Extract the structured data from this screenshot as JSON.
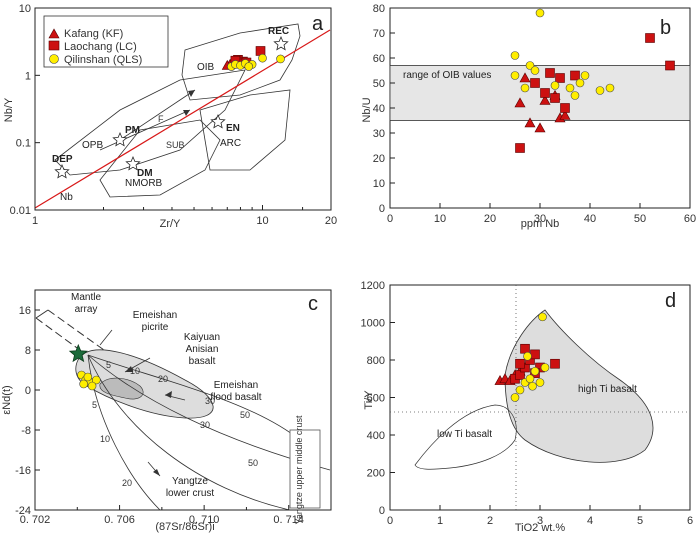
{
  "legend": {
    "items": [
      {
        "label": "Kafang (KF)",
        "marker": "triangle",
        "color": "#cc1111"
      },
      {
        "label": "Laochang (LC)",
        "marker": "square",
        "color": "#cc1111"
      },
      {
        "label": "Qilinshan (QLS)",
        "marker": "circle",
        "color": "#ffee00"
      }
    ]
  },
  "chart_data": [
    {
      "panel": "a",
      "type": "scatter",
      "xlabel": "Zr/Y",
      "ylabel": "Nb/Y",
      "x_scale": "log",
      "y_scale": "log",
      "xlim": [
        1,
        20
      ],
      "ylim": [
        0.01,
        10
      ],
      "x_ticks": [
        "1",
        "10",
        "20"
      ],
      "y_ticks": [
        "10",
        "1",
        "0.1",
        "0.01"
      ],
      "annotations": [
        "DEP",
        "PM",
        "DM",
        "EN",
        "REC",
        "OIB",
        "OPB",
        "ARC",
        "NMORB",
        "F",
        "SUB",
        "Nb"
      ],
      "series": [
        {
          "name": "Kafang (KF)",
          "points": [
            [
              7.2,
              1.45
            ],
            [
              7.5,
              1.55
            ],
            [
              7.0,
              1.4
            ]
          ]
        },
        {
          "name": "Laochang (LC)",
          "points": [
            [
              7.8,
              1.7
            ],
            [
              8.2,
              1.6
            ],
            [
              9.8,
              2.3
            ],
            [
              8.0,
              1.5
            ],
            [
              7.6,
              1.65
            ],
            [
              8.5,
              1.55
            ]
          ]
        },
        {
          "name": "Qilinshan (QLS)",
          "points": [
            [
              7.3,
              1.35
            ],
            [
              7.6,
              1.45
            ],
            [
              8.0,
              1.4
            ],
            [
              8.4,
              1.5
            ],
            [
              9.0,
              1.45
            ],
            [
              10.0,
              1.8
            ],
            [
              12.0,
              1.75
            ],
            [
              8.7,
              1.35
            ]
          ]
        }
      ]
    },
    {
      "panel": "b",
      "type": "scatter",
      "xlabel": "ppm Nb",
      "ylabel": "Nb/U",
      "xlim": [
        0,
        60
      ],
      "ylim": [
        0,
        80
      ],
      "x_ticks": [
        "0",
        "10",
        "20",
        "30",
        "40",
        "50",
        "60"
      ],
      "y_ticks": [
        "0",
        "10",
        "20",
        "30",
        "40",
        "50",
        "60",
        "70",
        "80"
      ],
      "band": {
        "y": [
          35,
          57
        ],
        "label": "range of OIB values"
      },
      "series": [
        {
          "name": "Kafang (KF)",
          "points": [
            [
              26,
              42
            ],
            [
              27,
              52
            ],
            [
              28,
              34
            ],
            [
              30,
              32
            ],
            [
              31,
              43
            ],
            [
              33,
              45
            ],
            [
              34,
              36
            ],
            [
              35,
              37
            ]
          ]
        },
        {
          "name": "Laochang (LC)",
          "points": [
            [
              26,
              24
            ],
            [
              29,
              50
            ],
            [
              31,
              46
            ],
            [
              32,
              54
            ],
            [
              33,
              44
            ],
            [
              34,
              52
            ],
            [
              35,
              40
            ],
            [
              37,
              53
            ],
            [
              52,
              68
            ],
            [
              56,
              57
            ]
          ]
        },
        {
          "name": "Qilinshan (QLS)",
          "points": [
            [
              25,
              61
            ],
            [
              25,
              53
            ],
            [
              27,
              48
            ],
            [
              28,
              57
            ],
            [
              30,
              78
            ],
            [
              33,
              49
            ],
            [
              36,
              48
            ],
            [
              37,
              45
            ],
            [
              38,
              50
            ],
            [
              39,
              53
            ],
            [
              42,
              47
            ],
            [
              44,
              48
            ],
            [
              29,
              55
            ]
          ]
        }
      ]
    },
    {
      "panel": "c",
      "type": "scatter",
      "xlabel": "(87Sr/86Sr)i",
      "ylabel": "εNd(t)",
      "xlim": [
        0.702,
        0.716
      ],
      "ylim": [
        -24,
        20
      ],
      "x_ticks": [
        "0.702",
        "0.706",
        "0.710",
        "0.714"
      ],
      "y_ticks": [
        "16",
        "8",
        "0",
        "-8",
        "-16",
        "-24"
      ],
      "annotations": [
        "Mantle array",
        "Emeishan picrite",
        "Kaiyuan Anisian basalt",
        "Emeishan flood basalt",
        "Yangtze upper middle crust",
        "Yangtze lower crust"
      ],
      "curve_labels": [
        "5",
        "10",
        "20",
        "30",
        "50",
        "5",
        "10",
        "20",
        "30",
        "50"
      ],
      "series": [
        {
          "name": "Emeishan picrite",
          "points": [
            [
              0.70405,
              7.2
            ]
          ]
        },
        {
          "name": "Qilinshan (QLS)",
          "points": [
            [
              0.7042,
              3.0
            ],
            [
              0.7044,
              2.0
            ],
            [
              0.7046,
              1.5
            ],
            [
              0.7049,
              2.0
            ],
            [
              0.7047,
              0.8
            ],
            [
              0.7043,
              1.2
            ],
            [
              0.7045,
              2.6
            ]
          ]
        }
      ]
    },
    {
      "panel": "d",
      "type": "scatter",
      "xlabel": "TiO2 wt.%",
      "ylabel": "Ti/Y",
      "xlim": [
        0,
        6
      ],
      "ylim": [
        0,
        1200
      ],
      "x_ticks": [
        "0",
        "1",
        "2",
        "3",
        "4",
        "5",
        "6"
      ],
      "y_ticks": [
        "0",
        "200",
        "400",
        "600",
        "800",
        "1000",
        "1200"
      ],
      "fields": [
        "high Ti basalt",
        "low Ti basalt"
      ],
      "series": [
        {
          "name": "Kafang (KF)",
          "points": [
            [
              2.2,
              690
            ],
            [
              2.3,
              700
            ],
            [
              2.4,
              690
            ],
            [
              2.5,
              720
            ],
            [
              2.6,
              740
            ]
          ]
        },
        {
          "name": "Laochang (LC)",
          "points": [
            [
              2.5,
              700
            ],
            [
              2.6,
              720
            ],
            [
              2.7,
              760
            ],
            [
              2.8,
              800
            ],
            [
              2.9,
              830
            ],
            [
              3.0,
              760
            ],
            [
              2.7,
              860
            ],
            [
              3.3,
              780
            ],
            [
              2.6,
              780
            ],
            [
              2.9,
              730
            ]
          ]
        },
        {
          "name": "Qilinshan (QLS)",
          "points": [
            [
              2.5,
              600
            ],
            [
              2.6,
              640
            ],
            [
              2.7,
              680
            ],
            [
              2.8,
              700
            ],
            [
              2.9,
              740
            ],
            [
              3.0,
              680
            ],
            [
              3.05,
              1030
            ],
            [
              3.1,
              760
            ],
            [
              2.85,
              660
            ],
            [
              2.75,
              820
            ]
          ]
        }
      ]
    }
  ]
}
